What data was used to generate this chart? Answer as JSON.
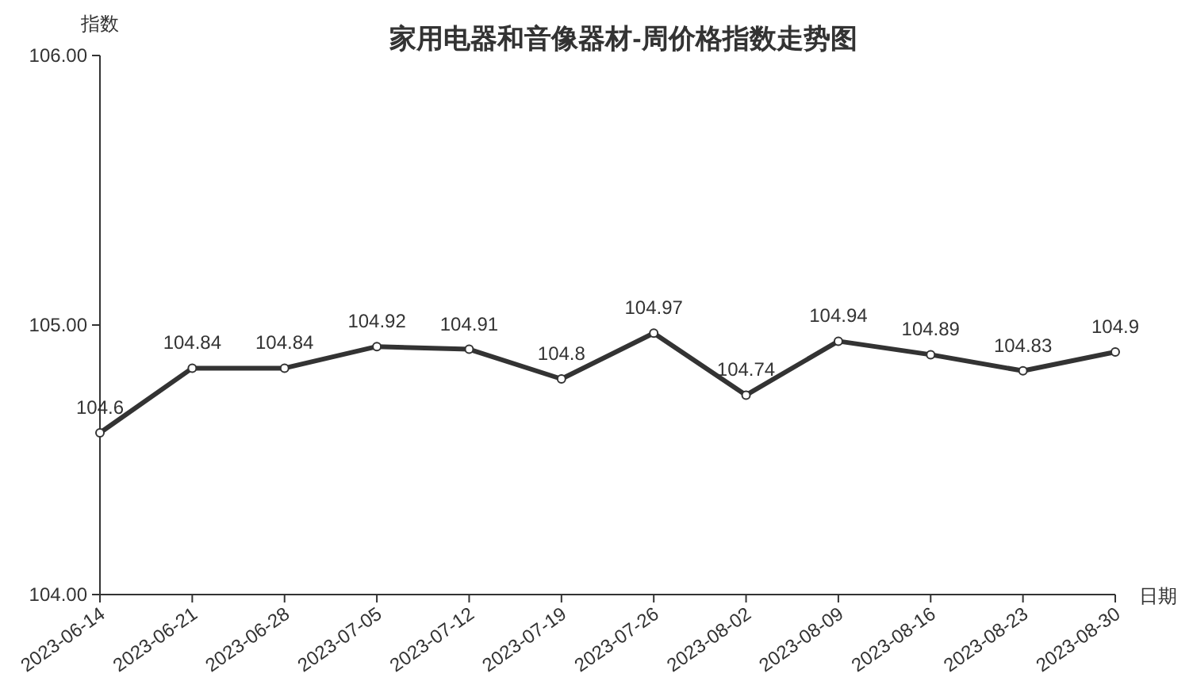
{
  "chart_data": {
    "type": "line",
    "title": "家用电器和音像器材-周价格指数走势图",
    "ylabel": "指数",
    "xlabel": "日期",
    "categories": [
      "2023-06-14",
      "2023-06-21",
      "2023-06-28",
      "2023-07-05",
      "2023-07-12",
      "2023-07-19",
      "2023-07-26",
      "2023-08-02",
      "2023-08-09",
      "2023-08-16",
      "2023-08-23",
      "2023-08-30"
    ],
    "series": [
      {
        "color": "#333333",
        "values": [
          104.6,
          104.84,
          104.84,
          104.92,
          104.91,
          104.8,
          104.97,
          104.74,
          104.94,
          104.89,
          104.83,
          104.9
        ]
      }
    ],
    "ylim": [
      104,
      106
    ],
    "yticks": [
      {
        "value": 104,
        "label": "104.00"
      },
      {
        "value": 105,
        "label": "105.00"
      },
      {
        "value": 106,
        "label": "106.00"
      }
    ],
    "data_labels": true,
    "marker": "circle",
    "line_style": "solid"
  }
}
